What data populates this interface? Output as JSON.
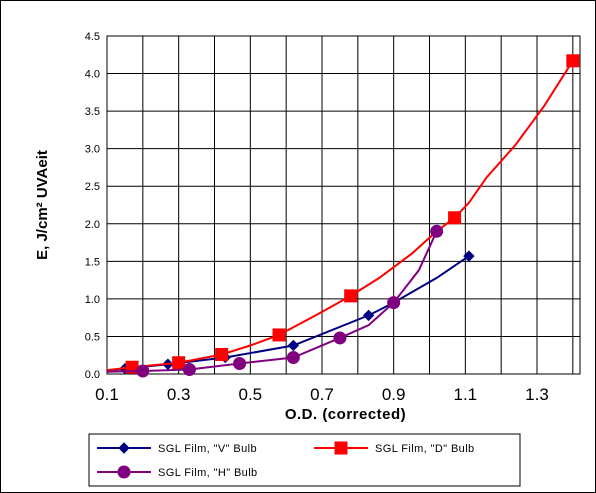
{
  "chart_data": {
    "type": "line",
    "xlabel": "O.D. (corrected)",
    "ylabel": "E, J/cm² UVAeit",
    "xlim": [
      0.1,
      1.42
    ],
    "ylim": [
      0,
      4.5
    ],
    "x_ticks": [
      0.1,
      0.3,
      0.5,
      0.7,
      0.9,
      1.1,
      1.3
    ],
    "x_tick_labels": [
      "0.1",
      "0.3",
      "0.5",
      "0.7",
      "0.9",
      "1.1",
      "1.3"
    ],
    "y_ticks": [
      0.0,
      0.5,
      1.0,
      1.5,
      2.0,
      2.5,
      3.0,
      3.5,
      4.0,
      4.5
    ],
    "y_tick_labels": [
      "0.0",
      "0.5",
      "1.0",
      "1.5",
      "2.0",
      "2.5",
      "3.0",
      "3.5",
      "4.0",
      "4.5"
    ],
    "grid": true,
    "legend_position": "bottom",
    "series": [
      {
        "name": "SGL Film, \"V\" Bulb",
        "color": "#000080",
        "marker": "diamond",
        "points": [
          [
            0.1,
            0.05
          ],
          [
            0.15,
            0.07
          ],
          [
            0.27,
            0.13
          ],
          [
            0.43,
            0.22
          ],
          [
            0.62,
            0.38
          ],
          [
            0.83,
            0.78
          ],
          [
            0.9,
            0.95
          ],
          [
            1.02,
            1.28
          ],
          [
            1.11,
            1.57
          ]
        ],
        "marker_points": [
          [
            0.15,
            0.07
          ],
          [
            0.27,
            0.13
          ],
          [
            0.43,
            0.22
          ],
          [
            0.62,
            0.38
          ],
          [
            0.83,
            0.78
          ],
          [
            0.9,
            0.95
          ],
          [
            1.11,
            1.57
          ]
        ]
      },
      {
        "name": "SGL Film, \"D\" Bulb",
        "color": "#ff0000",
        "marker": "square",
        "points": [
          [
            0.1,
            0.05
          ],
          [
            0.17,
            0.09
          ],
          [
            0.3,
            0.15
          ],
          [
            0.42,
            0.26
          ],
          [
            0.5,
            0.38
          ],
          [
            0.58,
            0.52
          ],
          [
            0.69,
            0.8
          ],
          [
            0.78,
            1.04
          ],
          [
            0.86,
            1.28
          ],
          [
            0.95,
            1.6
          ],
          [
            1.02,
            1.9
          ],
          [
            1.07,
            2.08
          ],
          [
            1.11,
            2.28
          ],
          [
            1.16,
            2.62
          ],
          [
            1.24,
            3.05
          ],
          [
            1.32,
            3.57
          ],
          [
            1.4,
            4.17
          ]
        ],
        "marker_points": [
          [
            0.17,
            0.09
          ],
          [
            0.3,
            0.15
          ],
          [
            0.42,
            0.26
          ],
          [
            0.58,
            0.52
          ],
          [
            0.78,
            1.04
          ],
          [
            1.07,
            2.08
          ],
          [
            1.4,
            4.17
          ]
        ]
      },
      {
        "name": "SGL Film, \"H\" Bulb",
        "color": "#800080",
        "marker": "circle",
        "points": [
          [
            0.1,
            0.03
          ],
          [
            0.2,
            0.04
          ],
          [
            0.33,
            0.06
          ],
          [
            0.47,
            0.14
          ],
          [
            0.62,
            0.22
          ],
          [
            0.75,
            0.48
          ],
          [
            0.83,
            0.65
          ],
          [
            0.9,
            0.95
          ],
          [
            0.97,
            1.38
          ],
          [
            1.02,
            1.9
          ]
        ],
        "marker_points": [
          [
            0.2,
            0.04
          ],
          [
            0.33,
            0.06
          ],
          [
            0.47,
            0.14
          ],
          [
            0.62,
            0.22
          ],
          [
            0.75,
            0.48
          ],
          [
            0.9,
            0.95
          ],
          [
            1.02,
            1.9
          ]
        ]
      }
    ]
  }
}
